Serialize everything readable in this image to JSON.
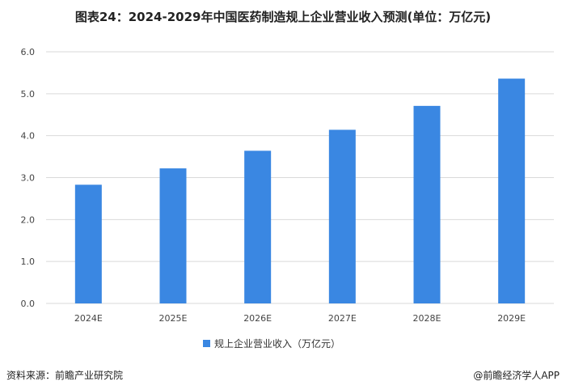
{
  "chart_data": {
    "type": "bar",
    "title": "图表24：2024-2029年中国医药制造规上企业营业收入预测(单位：万亿元)",
    "categories": [
      "2024E",
      "2025E",
      "2026E",
      "2027E",
      "2028E",
      "2029E"
    ],
    "series": [
      {
        "name": "规上企业营业收入（万亿元）",
        "values": [
          2.83,
          3.22,
          3.64,
          4.14,
          4.71,
          5.36
        ]
      }
    ],
    "ylim": [
      0,
      6
    ],
    "yticks": [
      "0.0",
      "1.0",
      "2.0",
      "3.0",
      "4.0",
      "5.0",
      "6.0"
    ],
    "grid": true,
    "legend_position": "bottom",
    "bar_color": "#3a87e2"
  },
  "footer": {
    "source": "资料来源：前瞻产业研究院",
    "brand": "@前瞻经济学人APP"
  }
}
